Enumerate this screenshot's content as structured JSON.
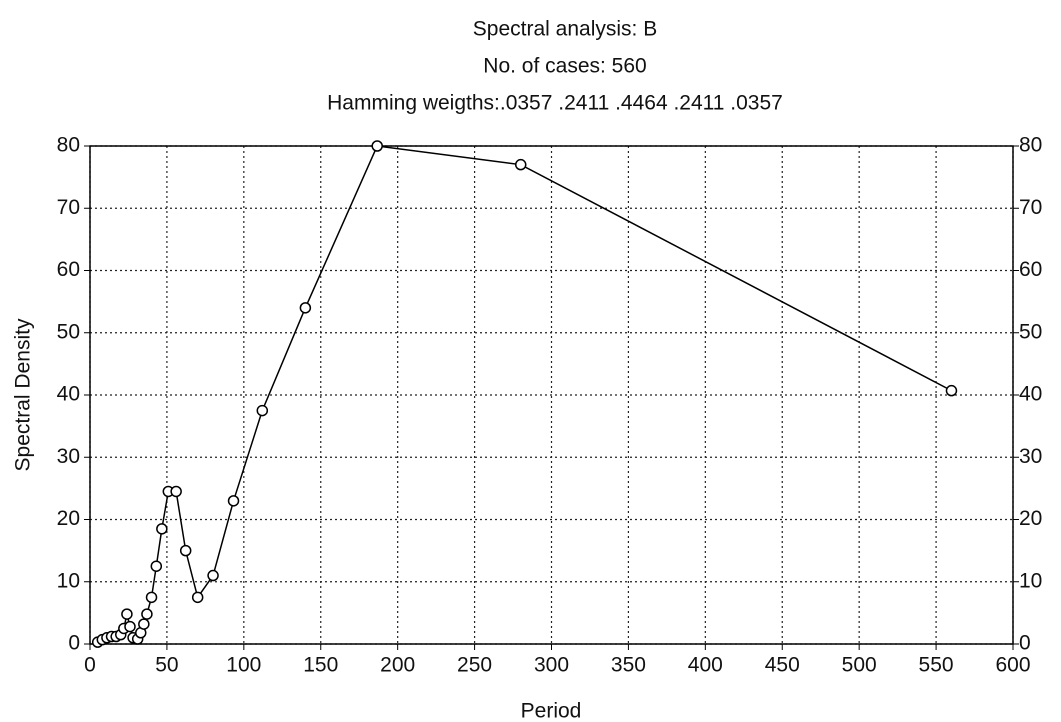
{
  "chart_data": {
    "type": "line",
    "title": "Spectral analysis: B",
    "subtitle": "No. of cases: 560",
    "annotation": "Hamming weigths:.0357 .2411 .4464 .2411 .0357",
    "x_label": "Period",
    "y_label": "Spectral Density",
    "x": [
      5,
      8,
      11,
      14,
      17,
      20,
      22,
      24,
      26,
      28,
      31,
      33,
      35,
      37,
      40,
      43.1,
      46.7,
      50.9,
      56,
      62.2,
      70,
      80,
      93.3,
      112,
      140,
      186.7,
      280,
      560
    ],
    "series": [
      {
        "name": "Spectral Density",
        "color": "#000000",
        "values": [
          0.3,
          0.7,
          1,
          1.2,
          1.2,
          1.5,
          2.5,
          4.8,
          2.8,
          1,
          0.8,
          1.8,
          3.2,
          4.8,
          7.5,
          12.5,
          18.5,
          24.5,
          24.5,
          15,
          7.5,
          11,
          23,
          37.5,
          54,
          80,
          77,
          40.7
        ]
      }
    ],
    "xlim": [
      0,
      600
    ],
    "xticks": [
      0,
      50,
      100,
      150,
      200,
      250,
      300,
      350,
      400,
      450,
      500,
      550,
      600
    ],
    "ylim": [
      0,
      80
    ],
    "yticks": [
      0,
      10,
      20,
      30,
      40,
      50,
      60,
      70,
      80
    ],
    "grid": true
  }
}
